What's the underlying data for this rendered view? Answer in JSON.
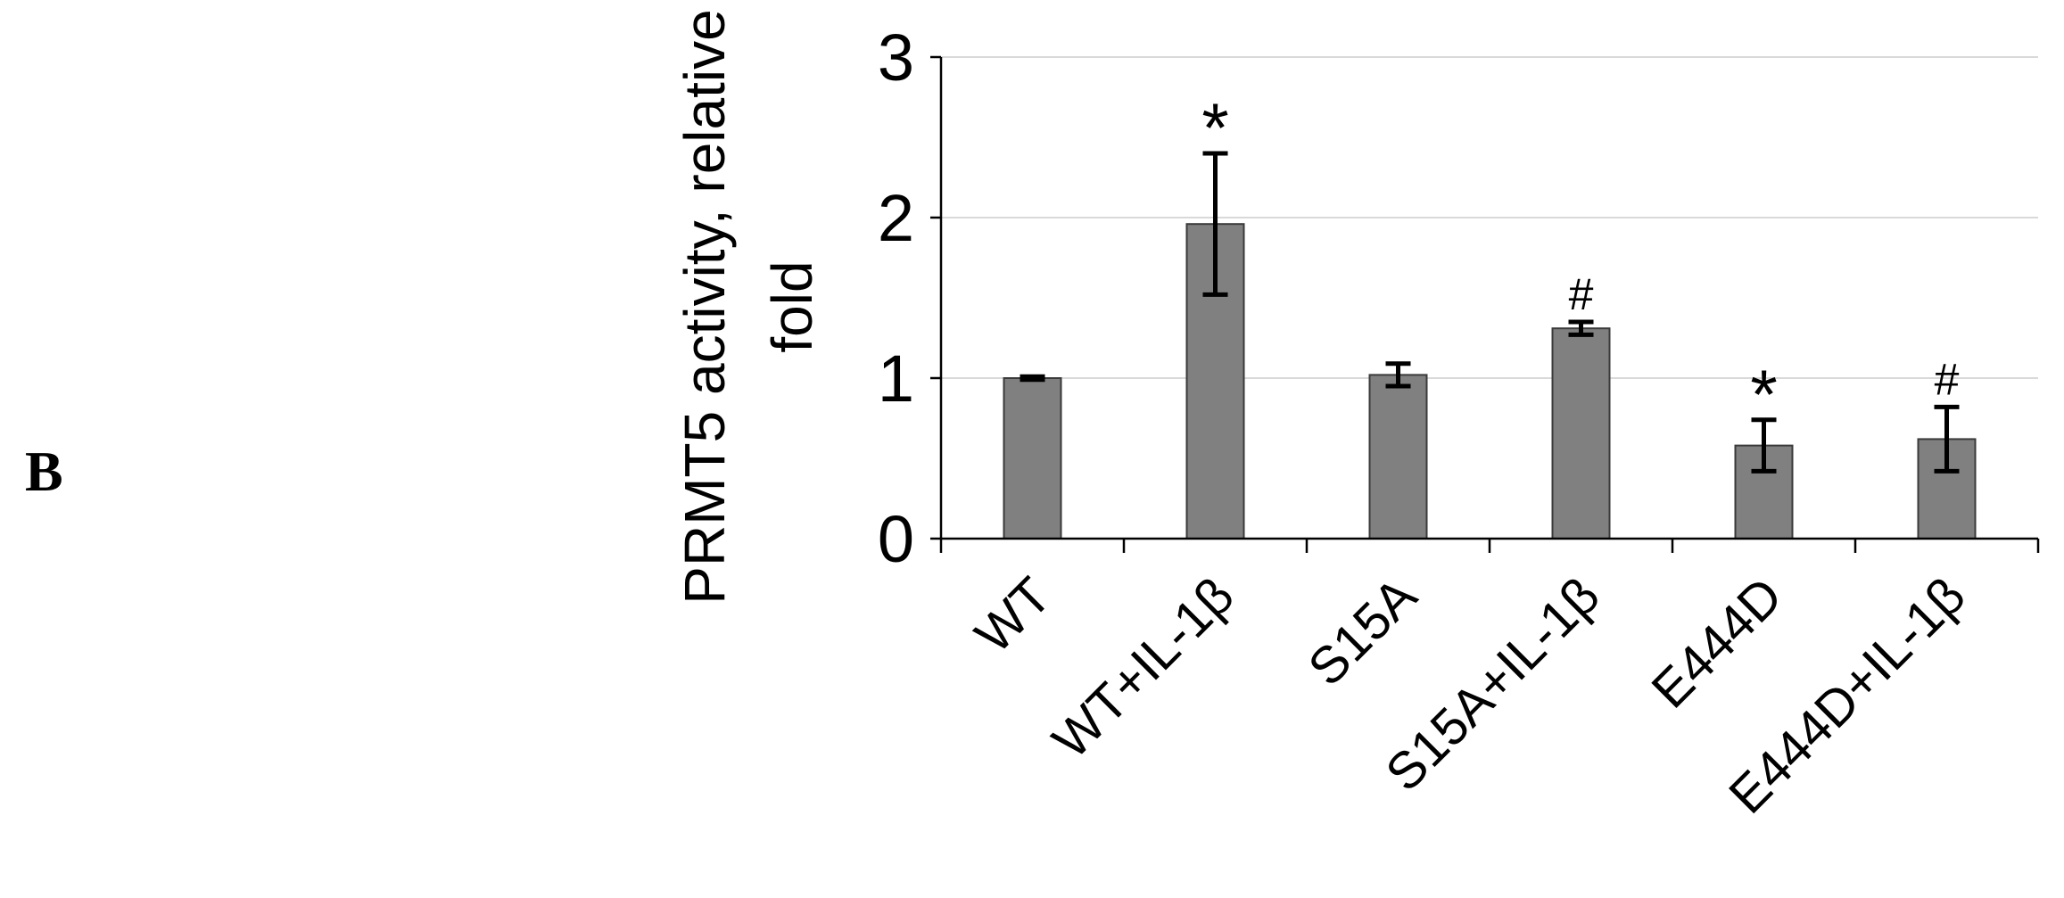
{
  "panel_label": "B",
  "chart_data": {
    "type": "bar",
    "title": "",
    "xlabel": "",
    "ylabel_lines": [
      "PRMT5 activity, relative",
      "fold"
    ],
    "categories": [
      "WT",
      "WT+IL-1β",
      "S15A",
      "S15A+IL-1β",
      "E444D",
      "E444D+IL-1β"
    ],
    "series": [
      {
        "values": [
          1.0,
          1.96,
          1.02,
          1.31,
          0.58,
          0.62
        ],
        "errors": [
          0.01,
          0.44,
          0.07,
          0.04,
          0.16,
          0.2
        ],
        "color": "#808080"
      }
    ],
    "annotations": [
      "",
      "*",
      "",
      "#",
      "*",
      "#"
    ],
    "ylim": [
      0,
      3
    ],
    "yticks": [
      "0",
      "1",
      "2",
      "3"
    ],
    "grid": true,
    "legend": "none"
  }
}
